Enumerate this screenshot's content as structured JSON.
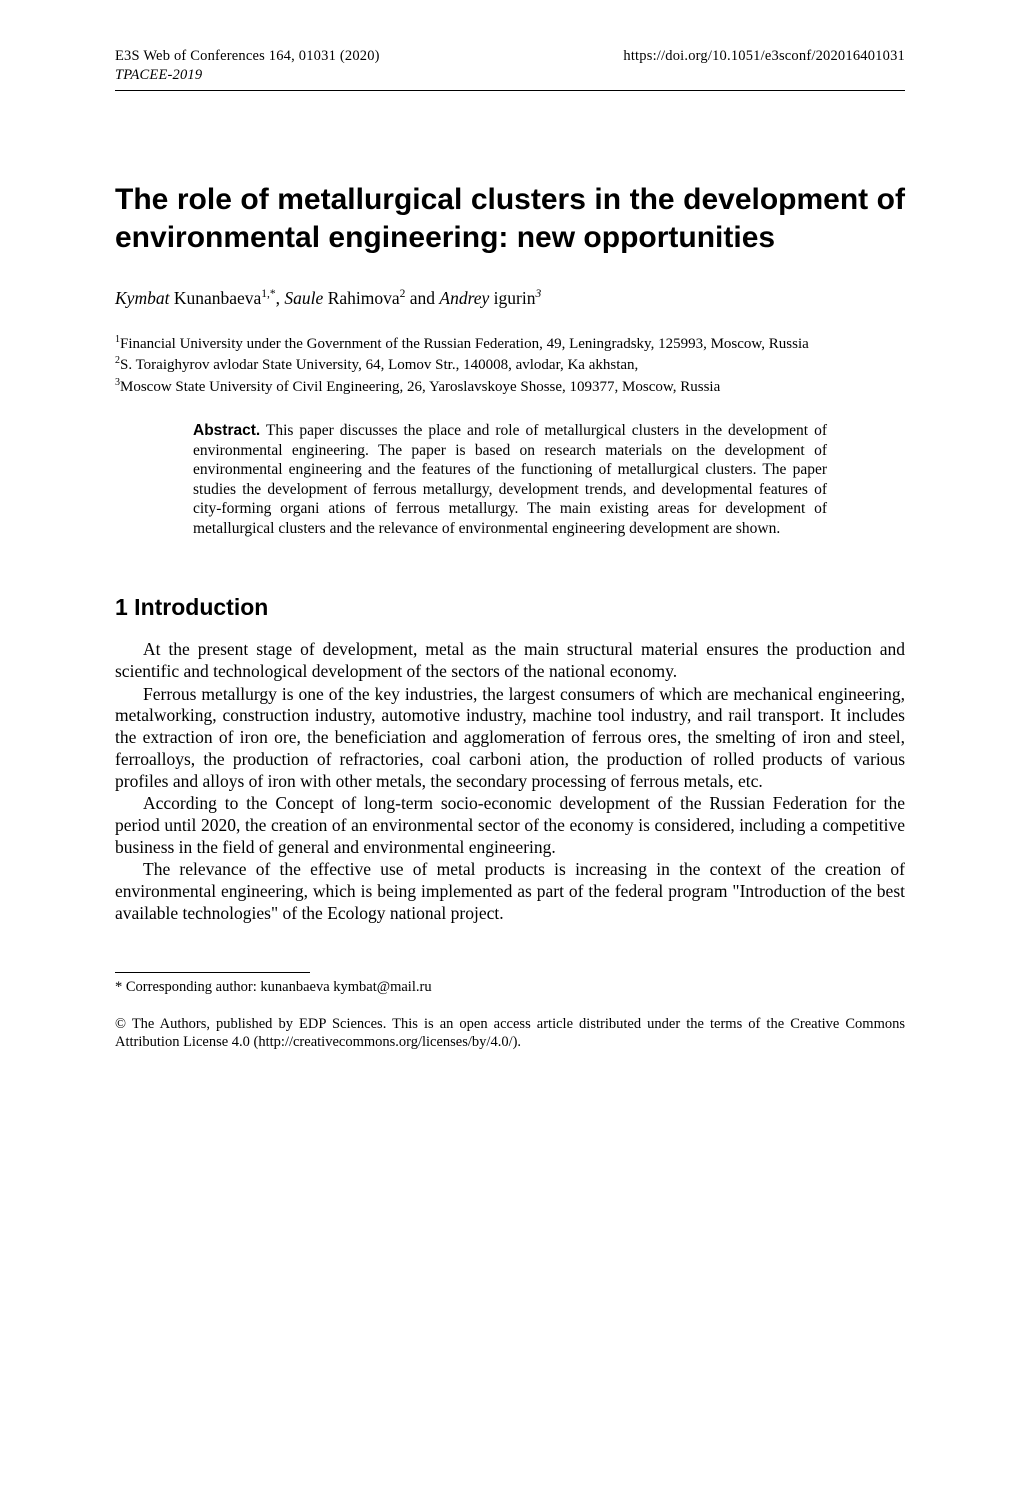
{
  "header": {
    "journal_ref": "E3S Web of Conferences 164, 01031 (2020)",
    "doi": "https://doi.org/10.1051/e3sconf/202016401031",
    "conference": "TPACEE-2019"
  },
  "title": "The role of metallurgical clusters in the development of environmental engineering: new opportunities",
  "authors": {
    "a1_given": "Kymbat",
    "a1_family": "Kunanbaeva",
    "a1_sup": "1,*",
    "sep1": ", ",
    "a2_given": "Saule",
    "a2_family": "Rahimova",
    "a2_sup": "2",
    "sep2": "  and  ",
    "a3_given": "Andrey",
    "a3_family": "igurin",
    "a3_sup": "3"
  },
  "affiliations": {
    "l1_sup": "1",
    "l1": "Financial University under the Government of the Russian Federation, 49, Leningradsky, 125993, Moscow, Russia",
    "l2_sup": "2",
    "l2": "S. Toraighyrov  avlodar State University, 64, Lomov Str., 140008,  avlodar, Ka akhstan,",
    "l3_sup": "3",
    "l3": "Moscow State University of Civil Engineering, 26, Yaroslavskoye Shosse, 109377, Moscow, Russia"
  },
  "abstract": {
    "heading": "Abstract.",
    "text": "  This paper discusses the place and role of metallurgical clusters in the development of environmental engineering. The paper is based on research materials on the development of environmental engineering and the features of the functioning of metallurgical clusters. The paper studies the development of ferrous metallurgy, development trends, and developmental features of city-forming organi ations of ferrous metallurgy. The main existing areas for development of metallurgical clusters and the relevance of environmental engineering development are shown."
  },
  "section1_heading": "1 Introduction",
  "paragraphs": {
    "p1": "At the present stage of development, metal as the main structural material ensures the production and scientific and technological development of the sectors of the national economy.",
    "p2": "Ferrous metallurgy is one of the key industries, the largest consumers of which are mechanical engineering, metalworking, construction industry, automotive industry, machine tool industry, and rail transport. It includes the extraction of iron ore, the beneficiation and agglomeration of ferrous ores, the smelting of iron and steel, ferroalloys, the production of refractories, coal carboni ation, the production of rolled products of various profiles and alloys of iron with other metals, the secondary processing of ferrous metals, etc.",
    "p3": "According to the Concept of long-term socio-economic development of the Russian Federation for the period until 2020, the creation of an environmental sector of the economy is considered, including a competitive business in the field of general and environmental engineering.",
    "p4": "The relevance of the effective use of metal products is increasing in the context of the creation of environmental engineering, which is being implemented as part of the federal program \"Introduction of the best available technologies\" of the Ecology national project."
  },
  "footnote": {
    "marker": "*",
    "text": " Corresponding author: kunanbaeva  kymbat@mail.ru"
  },
  "copyright": "© The Authors, published by EDP Sciences. This is an open access article distributed under the terms of the Creative Commons Attribution License 4.0 (http://creativecommons.org/licenses/by/4.0/)."
}
